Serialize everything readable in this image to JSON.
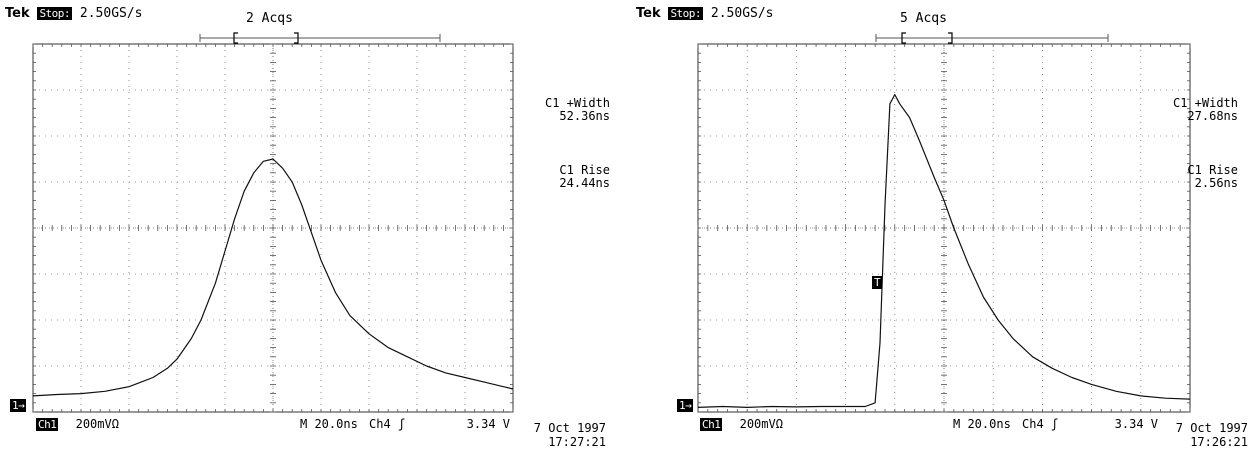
{
  "chart_data": [
    {
      "type": "line",
      "header": {
        "brand": "Tek",
        "run_state": "Stop:",
        "sample_rate": "2.50GS/s",
        "acquisitions": "2 Acqs"
      },
      "measurements": [
        {
          "label": "C1 +Width",
          "value": "52.36ns"
        },
        {
          "label": "C1 Rise",
          "value": "24.44ns"
        }
      ],
      "footer": {
        "channel": "Ch1",
        "volts_per_div": "200mVΩ",
        "timebase": "M 20.0ns",
        "trigger_source": "Ch4",
        "trigger_symbol": "ʃ",
        "trigger_level": "3.34 V"
      },
      "date": "7 Oct 1997",
      "time": "17:27:21",
      "ground_marker": "1→",
      "xlim": [
        0,
        10
      ],
      "ylim": [
        0,
        8
      ],
      "grid": true,
      "series": [
        {
          "x": [
            0,
            0.5,
            1,
            1.5,
            2,
            2.5,
            2.8,
            3,
            3.3,
            3.5,
            3.8,
            4,
            4.2,
            4.4,
            4.6,
            4.8,
            5,
            5.2,
            5.4,
            5.6,
            5.8,
            6,
            6.3,
            6.6,
            7,
            7.4,
            7.8,
            8.2,
            8.6,
            9,
            9.4,
            9.8,
            10
          ],
          "y": [
            0.35,
            0.38,
            0.4,
            0.45,
            0.55,
            0.75,
            0.95,
            1.15,
            1.6,
            2.0,
            2.8,
            3.5,
            4.2,
            4.8,
            5.2,
            5.45,
            5.5,
            5.3,
            5.0,
            4.5,
            3.9,
            3.3,
            2.6,
            2.1,
            1.7,
            1.4,
            1.2,
            1.0,
            0.85,
            0.75,
            0.65,
            0.55,
            0.5
          ]
        }
      ]
    },
    {
      "type": "line",
      "header": {
        "brand": "Tek",
        "run_state": "Stop:",
        "sample_rate": "2.50GS/s",
        "acquisitions": "5 Acqs"
      },
      "measurements": [
        {
          "label": "C1 +Width",
          "value": "27.68ns"
        },
        {
          "label": "C1 Rise",
          "value": "2.56ns"
        }
      ],
      "footer": {
        "channel": "Ch1",
        "volts_per_div": "200mVΩ",
        "timebase": "M 20.0ns",
        "trigger_source": "Ch4",
        "trigger_symbol": "ʃ",
        "trigger_level": "3.34 V"
      },
      "date": "7 Oct 1997",
      "time": "17:26:21",
      "ground_marker": "1→",
      "trigger_marker": "T",
      "xlim": [
        0,
        10
      ],
      "ylim": [
        0,
        8
      ],
      "grid": true,
      "series": [
        {
          "x": [
            0,
            0.5,
            1,
            1.5,
            2,
            2.5,
            3,
            3.4,
            3.6,
            3.7,
            3.8,
            3.9,
            4.0,
            4.1,
            4.3,
            4.5,
            4.8,
            5.0,
            5.2,
            5.5,
            5.8,
            6.1,
            6.4,
            6.8,
            7.2,
            7.6,
            8.0,
            8.5,
            9.0,
            9.5,
            10
          ],
          "y": [
            0.1,
            0.12,
            0.1,
            0.12,
            0.11,
            0.12,
            0.12,
            0.12,
            0.2,
            1.5,
            4.5,
            6.7,
            6.9,
            6.7,
            6.4,
            5.9,
            5.1,
            4.6,
            4.0,
            3.2,
            2.5,
            2.0,
            1.6,
            1.2,
            0.95,
            0.75,
            0.6,
            0.45,
            0.35,
            0.3,
            0.28
          ]
        }
      ]
    }
  ]
}
